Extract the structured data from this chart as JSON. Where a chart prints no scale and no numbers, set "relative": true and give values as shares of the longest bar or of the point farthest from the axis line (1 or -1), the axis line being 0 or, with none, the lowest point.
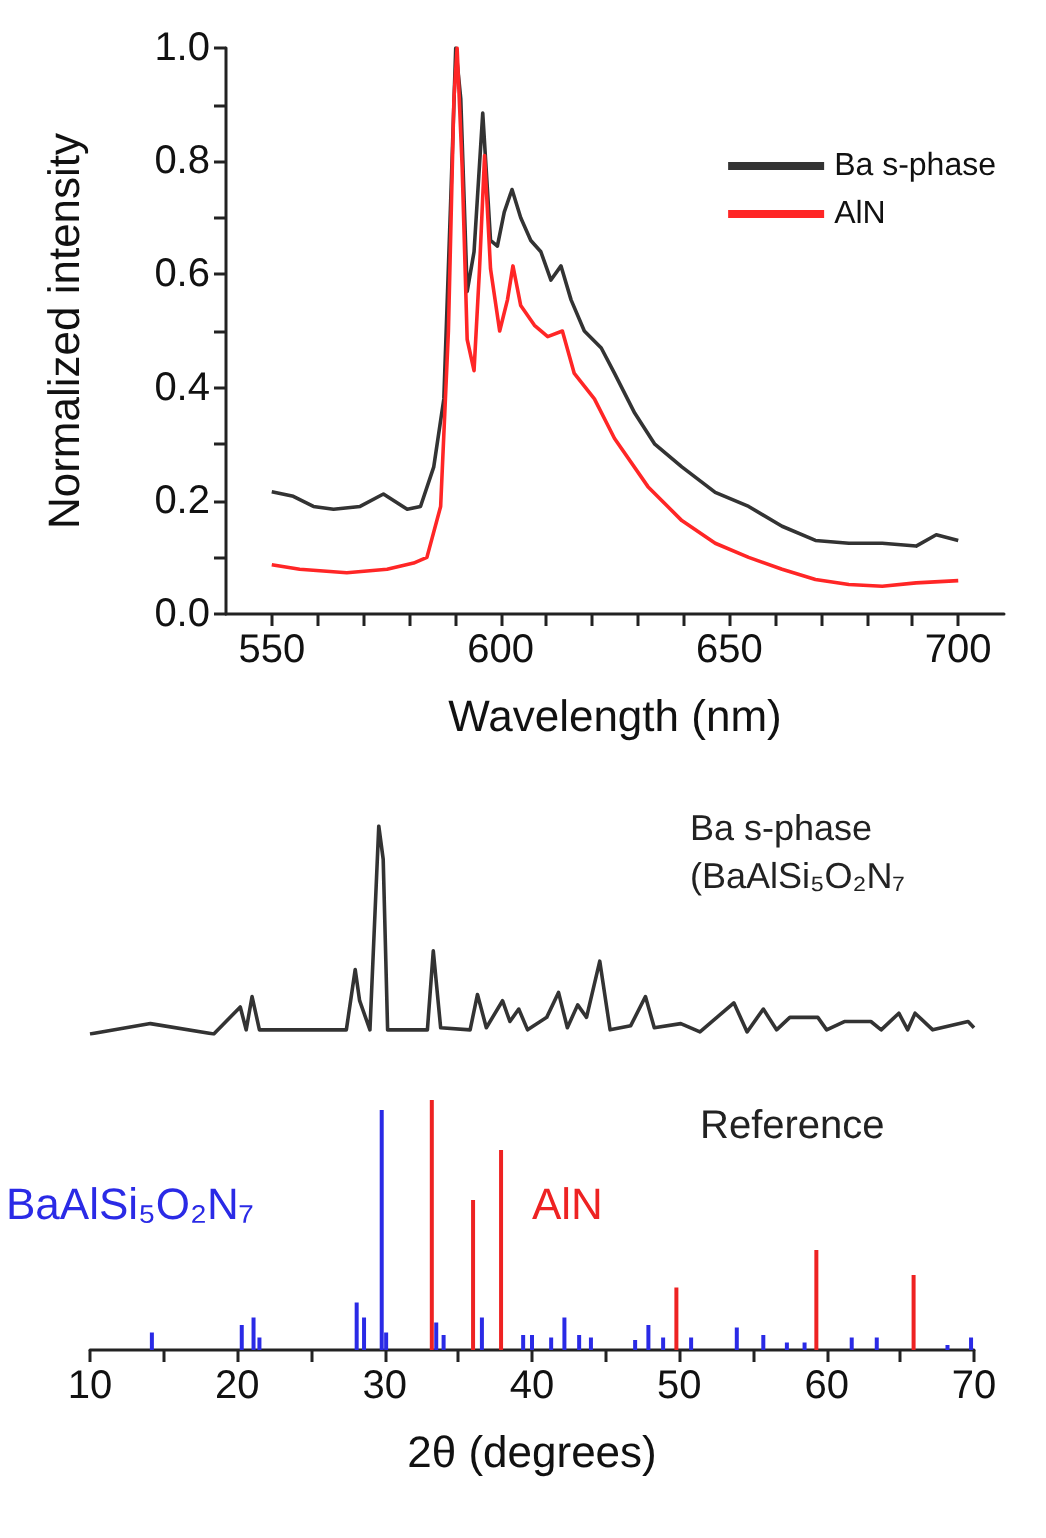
{
  "chart_data": [
    {
      "type": "line",
      "xlabel": "Wavelength (nm)",
      "ylabel": "Normalized intensity",
      "xlim": [
        540,
        710
      ],
      "ylim": [
        0,
        1.0
      ],
      "xticks": [
        550,
        {
          "value": 560,
          "label": null
        },
        {
          "value": 570,
          "label": null
        },
        {
          "value": 580,
          "label": null
        },
        {
          "value": 590,
          "label": null
        },
        600,
        {
          "value": 610,
          "label": null
        },
        {
          "value": 620,
          "label": null
        },
        {
          "value": 630,
          "label": null
        },
        {
          "value": 640,
          "label": null
        },
        650,
        {
          "value": 660,
          "label": null
        },
        {
          "value": 670,
          "label": null
        },
        {
          "value": 680,
          "label": null
        },
        {
          "value": 690,
          "label": null
        },
        700
      ],
      "yticks": [
        {
          "value": 0,
          "label": "0.0"
        },
        {
          "value": 0.1,
          "label": null
        },
        {
          "value": 0.2,
          "label": "0.2"
        },
        {
          "value": 0.3,
          "label": null
        },
        {
          "value": 0.4,
          "label": "0.4"
        },
        {
          "value": 0.5,
          "label": null
        },
        {
          "value": 0.6,
          "label": "0.6"
        },
        {
          "value": 0.7,
          "label": null
        },
        {
          "value": 0.8,
          "label": "0.8"
        },
        {
          "value": 0.9,
          "label": null
        },
        {
          "value": 1.0,
          "label": "1.0"
        }
      ],
      "legend": "top right",
      "grid": false,
      "series": [
        {
          "name": "Ba s-phase",
          "color": "#333333",
          "x": [
            550,
            554.7,
            559.1,
            563.5,
            569.3,
            574.4,
            579.6,
            582.5,
            585.4,
            587.6,
            589.1,
            590.2,
            591.3,
            592.7,
            594.2,
            596.1,
            597.8,
            599.3,
            600.8,
            602.5,
            604.4,
            606.6,
            608.8,
            611.0,
            613.2,
            615.4,
            618.3,
            622.0,
            624.9,
            629.3,
            633.7,
            639.6,
            646.9,
            654.2,
            661.5,
            668.8,
            676.1,
            683.4,
            690.8,
            695.2,
            700
          ],
          "values": [
            0.216,
            0.208,
            0.19,
            0.185,
            0.19,
            0.212,
            0.185,
            0.19,
            0.26,
            0.38,
            0.73,
            1.0,
            0.91,
            0.57,
            0.64,
            0.885,
            0.66,
            0.65,
            0.71,
            0.75,
            0.7,
            0.66,
            0.64,
            0.59,
            0.615,
            0.555,
            0.5,
            0.47,
            0.425,
            0.355,
            0.3,
            0.26,
            0.215,
            0.19,
            0.155,
            0.13,
            0.125,
            0.125,
            0.12,
            0.14,
            0.13
          ]
        },
        {
          "name": "AlN",
          "color": "#ff2626",
          "x": [
            550,
            556.1,
            566.4,
            575.2,
            581.0,
            583.9,
            586.9,
            588.6,
            589.8,
            590.5,
            591.6,
            592.7,
            594.2,
            595.4,
            596.5,
            597.8,
            599.8,
            601.5,
            602.7,
            604.4,
            607.4,
            610.3,
            613.5,
            616.1,
            620.5,
            624.9,
            632.2,
            639.6,
            646.9,
            654.2,
            661.5,
            668.8,
            676.1,
            683.4,
            690.8,
            700
          ],
          "values": [
            0.087,
            0.079,
            0.073,
            0.079,
            0.09,
            0.1,
            0.19,
            0.5,
            0.91,
            1.0,
            0.79,
            0.485,
            0.43,
            0.61,
            0.81,
            0.61,
            0.5,
            0.555,
            0.615,
            0.545,
            0.51,
            0.49,
            0.5,
            0.425,
            0.38,
            0.31,
            0.225,
            0.165,
            0.125,
            0.1,
            0.079,
            0.061,
            0.052,
            0.049,
            0.055,
            0.059
          ]
        }
      ]
    },
    {
      "type": "line",
      "relative": true,
      "tick_labels": false,
      "xlim": [
        10,
        70
      ],
      "legend": false,
      "series": [
        {
          "name": "Ba s-phase (BaAlSi₅O₂N₇",
          "color": "#333333",
          "x": [
            10,
            14.1,
            18.4,
            20.2,
            20.6,
            21.0,
            21.5,
            27.4,
            28.0,
            28.3,
            29.0,
            29.6,
            29.9,
            30.2,
            32.9,
            33.3,
            33.8,
            35.8,
            36.3,
            36.9,
            38.0,
            38.5,
            39.1,
            39.7,
            41.0,
            41.8,
            42.4,
            43.1,
            43.7,
            44.6,
            45.3,
            46.7,
            47.7,
            48.3,
            50.1,
            51.4,
            53.7,
            54.6,
            55.7,
            56.6,
            57.5,
            59.4,
            60.0,
            61.2,
            63.0,
            63.7,
            64.9,
            65.5,
            66.0,
            67.2,
            69.6,
            70
          ],
          "values": [
            0,
            0.05,
            0,
            0.13,
            0.02,
            0.18,
            0.02,
            0.02,
            0.31,
            0.16,
            0.02,
            1.0,
            0.84,
            0.02,
            0.02,
            0.4,
            0.03,
            0.02,
            0.19,
            0.03,
            0.16,
            0.06,
            0.12,
            0.02,
            0.08,
            0.2,
            0.03,
            0.14,
            0.08,
            0.35,
            0.02,
            0.04,
            0.18,
            0.03,
            0.05,
            0.01,
            0.15,
            0.01,
            0.12,
            0.02,
            0.08,
            0.08,
            0.02,
            0.06,
            0.06,
            0.02,
            0.1,
            0.02,
            0.1,
            0.02,
            0.06,
            0.03
          ]
        }
      ]
    },
    {
      "type": "bar",
      "relative": true,
      "title": "Reference",
      "xlabel": "2θ (degrees)",
      "tick_labels": "x",
      "xlim": [
        10,
        70
      ],
      "legend": false,
      "xticks": [
        10,
        {
          "value": 15,
          "label": null
        },
        20,
        {
          "value": 25,
          "label": null
        },
        30,
        {
          "value": 35,
          "label": null
        },
        40,
        {
          "value": 45,
          "label": null
        },
        50,
        {
          "value": 55,
          "label": null
        },
        60,
        {
          "value": 65,
          "label": null
        },
        70
      ],
      "series": [
        {
          "name": "BaAlSi₅O₂N₇",
          "color": "#2a2ae6",
          "x": [
            14.2,
            20.3,
            21.1,
            21.5,
            28.1,
            28.6,
            29.8,
            30.1,
            33.5,
            34.0,
            36.6,
            39.4,
            40.0,
            41.3,
            42.2,
            43.2,
            44.0,
            47.0,
            47.9,
            48.9,
            50.8,
            53.9,
            55.7,
            57.3,
            58.5,
            61.7,
            63.4,
            68.2,
            69.8
          ],
          "values": [
            0.07,
            0.1,
            0.13,
            0.05,
            0.19,
            0.13,
            0.96,
            0.07,
            0.11,
            0.06,
            0.13,
            0.06,
            0.06,
            0.05,
            0.13,
            0.06,
            0.05,
            0.04,
            0.1,
            0.05,
            0.05,
            0.09,
            0.06,
            0.03,
            0.03,
            0.05,
            0.05,
            0.02,
            0.05
          ]
        },
        {
          "name": "AlN",
          "color": "#ee2222",
          "x": [
            33.2,
            36.0,
            37.9,
            49.8,
            59.3,
            65.9
          ],
          "values": [
            1.0,
            0.6,
            0.8,
            0.25,
            0.4,
            0.3
          ]
        }
      ]
    }
  ]
}
